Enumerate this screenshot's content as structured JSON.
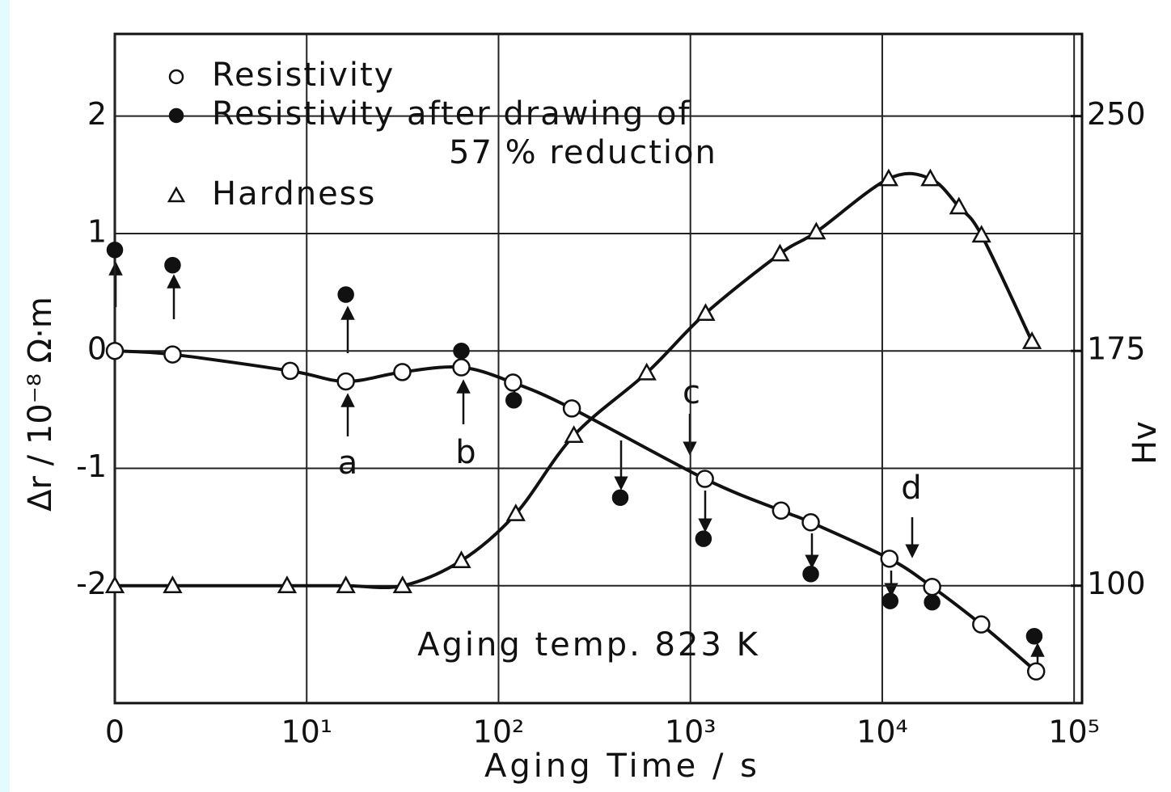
{
  "chart_data": {
    "type": "scatter",
    "xlabel": "Aging Time / s",
    "ylabel": "Δr / 10⁻⁸ Ω·m",
    "y2label": "Hv",
    "xscale": "log",
    "grid": true,
    "legend": "upper left",
    "xlim": [
      1,
      110000
    ],
    "xticks": [
      {
        "value": 1,
        "label": "0"
      },
      {
        "value": 10,
        "label": "10¹"
      },
      {
        "value": 100,
        "label": "10²"
      },
      {
        "value": 1000,
        "label": "10³"
      },
      {
        "value": 10000,
        "label": "10⁴"
      },
      {
        "value": 100000,
        "label": "10⁵"
      }
    ],
    "ylim": [
      -3,
      2.7
    ],
    "yticks": [
      -2,
      -1,
      0,
      1,
      2
    ],
    "y2lim": [
      62.5,
      276.25
    ],
    "y2ticks": [
      100,
      175,
      250
    ],
    "annotations": [
      "a",
      "b",
      "c",
      "d",
      "Aging temp. 823 K"
    ],
    "series": [
      {
        "name": "Resistivity",
        "marker": "open-circle",
        "line": true,
        "color": "#111",
        "x": [
          1,
          2.0,
          8.2,
          16,
          31.5,
          64,
          119,
          241,
          1190,
          2970,
          4240,
          10900,
          18200,
          32800,
          63400
        ],
        "values": [
          0,
          -0.03,
          -0.17,
          -0.26,
          -0.18,
          -0.14,
          -0.27,
          -0.49,
          -1.09,
          -1.36,
          -1.46,
          -1.77,
          -2.01,
          -2.33,
          -2.73
        ]
      },
      {
        "name": "Resistivity after drawing of\n57 % reduction",
        "marker": "filled-circle",
        "line": false,
        "color": "#111",
        "x": [
          1,
          2.0,
          16,
          64,
          120,
          431,
          1170,
          4240,
          11000,
          18200,
          62000
        ],
        "values": [
          0.86,
          0.73,
          0.48,
          0.0,
          -0.42,
          -1.25,
          -1.6,
          -1.9,
          -2.13,
          -2.14,
          -2.43
        ]
      },
      {
        "name": "Hardness",
        "marker": "open-triangle",
        "line": true,
        "axis": "y2",
        "color": "#111",
        "x": [
          1,
          2.0,
          7.9,
          16,
          31.6,
          64,
          123,
          247,
          592,
          1200,
          2930,
          4530,
          10800,
          17800,
          25100,
          32900,
          60300
        ],
        "values": [
          100,
          100,
          100,
          100,
          100,
          108,
          123,
          148,
          168,
          187,
          206,
          213,
          230,
          230,
          221,
          212,
          178
        ]
      }
    ]
  }
}
